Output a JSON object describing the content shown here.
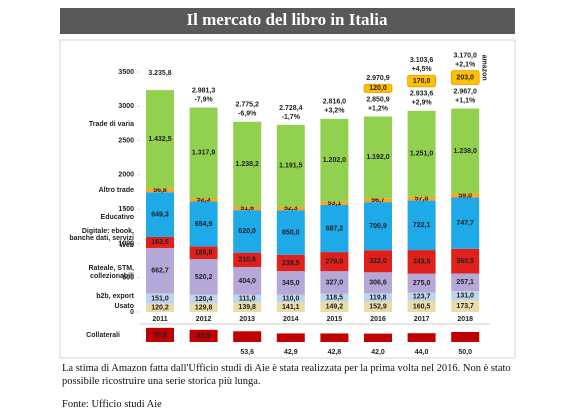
{
  "chart_data": {
    "type": "stacked_bar",
    "title": "Il mercato del libro in Italia",
    "categories": [
      "2011",
      "2012",
      "2013",
      "2014",
      "2015",
      "2016",
      "2017",
      "2018"
    ],
    "ylim": [
      0,
      3500
    ],
    "yticks": [
      0,
      500,
      1000,
      1500,
      2000,
      2500,
      3000,
      3500
    ],
    "series": [
      {
        "name": "Usato",
        "color": "#e9dca6",
        "values": [
          120.2,
          129.8,
          139.8,
          141.1,
          149.2,
          152.9,
          160.5,
          173.7
        ],
        "value_labels": [
          "120,2",
          "129,8",
          "139,8",
          "141,1",
          "149,2",
          "152,9",
          "160,5",
          "173,7"
        ]
      },
      {
        "name": "b2b, export",
        "color": "#bcd6ef",
        "values": [
          151.0,
          120.4,
          111.0,
          110.0,
          118.5,
          119.8,
          123.7,
          131.0
        ],
        "value_labels": [
          "151,0",
          "120,4",
          "111,0",
          "110,0",
          "118,5",
          "119,8",
          "123,7",
          "131,0"
        ]
      },
      {
        "name": "Rateale, STM, collezionabili",
        "color": "#b5a8d8",
        "values": [
          662.7,
          520.2,
          404.0,
          345.0,
          327.0,
          306.6,
          275.0,
          257.1
        ],
        "value_labels": [
          "662,7",
          "520,2",
          "404,0",
          "345,0",
          "327,0",
          "306,6",
          "275,0",
          "257,1"
        ]
      },
      {
        "name": "Digitale: ebook, banche dati, servizi Web",
        "color": "#e0201b",
        "values": [
          163.5,
          185.8,
          210.6,
          238.5,
          279.0,
          322.0,
          343.5,
          360.5
        ],
        "value_labels": [
          "163,5",
          "185,8",
          "210,6",
          "238,5",
          "279,0",
          "322,0",
          "343,5",
          "360,5"
        ]
      },
      {
        "name": "Educativo",
        "color": "#1ea9e8",
        "values": [
          649.3,
          654.9,
          620.0,
          650.0,
          687.2,
          700.9,
          722.1,
          747.7
        ],
        "value_labels": [
          "649,3",
          "654,9",
          "620,0",
          "650,0",
          "687,2",
          "700,9",
          "722,1",
          "747,7"
        ]
      },
      {
        "name": "Altro trade",
        "color": "#f6a623",
        "values": [
          56.8,
          52.3,
          51.6,
          52.3,
          53.1,
          56.7,
          57.8,
          59.0
        ],
        "value_labels": [
          "56,8",
          "52,3",
          "51,6",
          "52,3",
          "53,1",
          "56,7",
          "57,8",
          "59,0"
        ]
      },
      {
        "name": "Trade di varia",
        "color": "#92d050",
        "values": [
          1432.5,
          1317.9,
          1238.2,
          1191.5,
          1202.0,
          1192.0,
          1251.0,
          1238.0
        ],
        "value_labels": [
          "1.432,5",
          "1.317,9",
          "1.238,2",
          "1.191,5",
          "1.202,0",
          "1.192,0",
          "1.251,0",
          "1.238,0"
        ]
      }
    ],
    "totals": [
      3235.8,
      2981.3,
      2775.2,
      2728.4,
      2816.0,
      2850.9,
      2933.6,
      2967.0
    ],
    "total_labels": [
      "3.235,8",
      "2.981,3",
      "2.775,2",
      "2.728,4",
      "2.816,0",
      "2.850,9",
      "2.933,6",
      "2.967,0"
    ],
    "changes": [
      null,
      "-7,9%",
      "-6,9%",
      "-1,7%",
      "+3,2%",
      "+1,2%",
      "+2,9%",
      "+1,1%"
    ],
    "amazon": {
      "name": "amazon",
      "color": "#ffc000",
      "values": [
        null,
        null,
        null,
        null,
        null,
        120.0,
        170.0,
        203.0
      ],
      "value_labels": [
        null,
        null,
        null,
        null,
        null,
        "120,0",
        "170,0",
        "203,0"
      ],
      "totals": [
        null,
        null,
        null,
        null,
        null,
        2970.9,
        3103.6,
        3170.0
      ],
      "total_labels": [
        null,
        null,
        null,
        null,
        null,
        "2.970,9",
        "3.103,6",
        "3.170,0"
      ],
      "changes": [
        null,
        null,
        null,
        null,
        null,
        null,
        "+4,5%",
        "+2,1%"
      ]
    },
    "collaterali": {
      "name": "Collaterali",
      "color": "#c00000",
      "values": [
        70.8,
        60.9,
        53.6,
        42.9,
        42.8,
        42.0,
        44.0,
        50.0
      ],
      "value_labels": [
        "70,8",
        "60,9",
        "53,6",
        "42,9",
        "42,8",
        "42,0",
        "44,0",
        "50,0"
      ]
    },
    "note": "La stima di Amazon fatta dall'Ufficio studi di Aie è stata realizzata per la prima volta nel 2016. Non è stato possibile ricostruire una serie storica più lunga.",
    "source": "Fonte: Ufficio studi Aie"
  }
}
